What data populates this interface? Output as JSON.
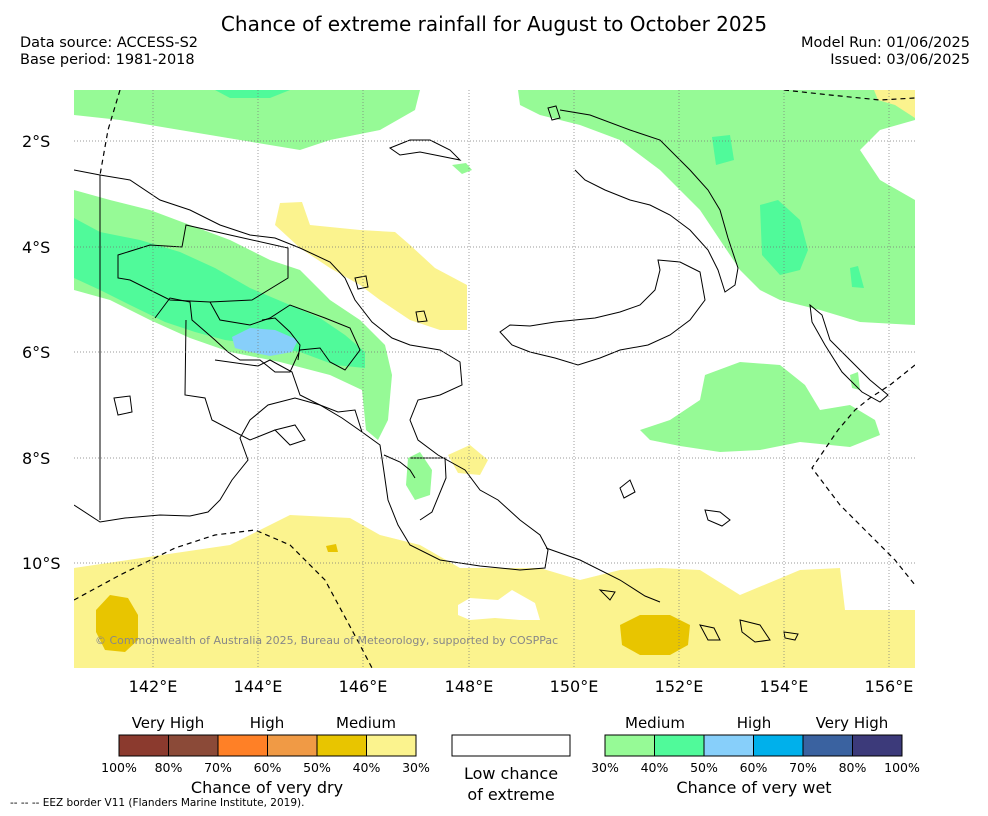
{
  "header": {
    "title": "Chance of extreme rainfall for August to October 2025",
    "data_source": "Data source: ACCESS-S2",
    "base_period": "Base period: 1981-2018",
    "model_run": "Model Run: 01/06/2025",
    "issued": "Issued: 03/06/2025"
  },
  "map": {
    "lat_labels": [
      "2°S",
      "4°S",
      "6°S",
      "8°S",
      "10°S"
    ],
    "lon_labels": [
      "142°E",
      "144°E",
      "146°E",
      "148°E",
      "150°E",
      "152°E",
      "154°E",
      "156°E"
    ],
    "copyright": "© Commonwealth of Australia 2025, Bureau of Meteorology, supported by COSPPac",
    "land_color": "#ffffff",
    "coast_color": "#000000"
  },
  "legend_dry": {
    "level_labels": [
      "Very High",
      "High",
      "Medium"
    ],
    "ticks": [
      "100%",
      "80%",
      "70%",
      "60%",
      "50%",
      "40%",
      "30%"
    ],
    "colors": [
      "#8b3a2e",
      "#8b4a38",
      "#ff8026",
      "#f09a45",
      "#e8c500",
      "#fbf38e"
    ],
    "title": "Chance of very dry"
  },
  "legend_low": {
    "line1": "Low chance",
    "line2": "of extreme"
  },
  "legend_wet": {
    "level_labels": [
      "Medium",
      "High",
      "Very High"
    ],
    "ticks": [
      "30%",
      "40%",
      "50%",
      "60%",
      "70%",
      "80%",
      "100%"
    ],
    "colors": [
      "#96fa96",
      "#50fa9a",
      "#87cffa",
      "#00b0eb",
      "#3a62a0",
      "#3c3a7a"
    ],
    "title": "Chance of very wet"
  },
  "footer": "--  --  -- EEZ border V11 (Flanders Marine Institute, 2019).",
  "palette": {
    "wet_medium": "#96fa96",
    "wet_medium_high": "#50fa9a",
    "wet_high": "#87cffa",
    "dry_medium": "#fbf38e",
    "dry_medium_high": "#e8c500"
  }
}
